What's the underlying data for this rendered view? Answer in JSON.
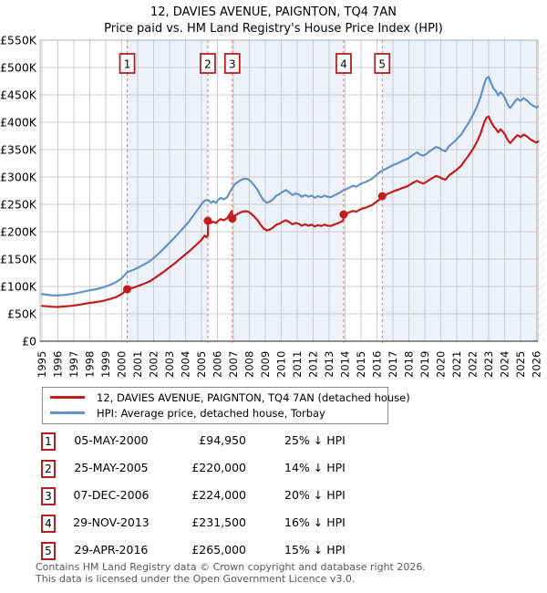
{
  "title": "12, DAVIES AVENUE, PAIGNTON, TQ4 7AN",
  "subtitle": "Price paid vs. HM Land Registry's House Price Index (HPI)",
  "footer": {
    "line1": "Contains HM Land Registry data © Crown copyright and database right 2026.",
    "line2": "This data is licensed under the Open Government Licence v3.0."
  },
  "chart_data": {
    "type": "line",
    "xlabel": "",
    "ylabel": "",
    "x_ticks": [
      1995,
      1996,
      1997,
      1998,
      1999,
      2000,
      2001,
      2002,
      2003,
      2004,
      2005,
      2006,
      2007,
      2008,
      2009,
      2010,
      2011,
      2012,
      2013,
      2014,
      2015,
      2016,
      2017,
      2018,
      2019,
      2020,
      2021,
      2022,
      2023,
      2024,
      2025,
      2026
    ],
    "y_ticks_k": [
      0,
      50,
      100,
      150,
      200,
      250,
      300,
      350,
      400,
      450,
      500,
      550
    ],
    "ylim_k": [
      0,
      550
    ],
    "grid": true,
    "colors": {
      "grid": "#cccccc",
      "band": "#edf1f9",
      "dashed": "#e57373",
      "badge_border": "#b42020",
      "border": "#b3b3b3",
      "axis": "#4d4d4d",
      "hatch": "#c9cdd4"
    },
    "series": [
      {
        "name": "12, DAVIES AVENUE, PAIGNTON, TQ4 7AN (detached house)",
        "color": "#c01d1d",
        "points_year_priceK": [
          [
            1995.0,
            64.5
          ],
          [
            1995.3,
            63.8
          ],
          [
            1995.6,
            63
          ],
          [
            1996.0,
            62.5
          ],
          [
            1996.4,
            63.5
          ],
          [
            1996.8,
            64.5
          ],
          [
            1997.2,
            66
          ],
          [
            1997.6,
            68
          ],
          [
            1998.0,
            70
          ],
          [
            1998.4,
            71.5
          ],
          [
            1998.8,
            73.5
          ],
          [
            1999.2,
            76.5
          ],
          [
            1999.6,
            80
          ],
          [
            2000.0,
            86
          ],
          [
            2000.35,
            95
          ],
          [
            2000.7,
            97.5
          ],
          [
            2001.0,
            100.5
          ],
          [
            2001.4,
            105
          ],
          [
            2001.8,
            110
          ],
          [
            2002.2,
            118
          ],
          [
            2002.6,
            126
          ],
          [
            2003.0,
            135
          ],
          [
            2003.4,
            144
          ],
          [
            2003.8,
            154
          ],
          [
            2004.2,
            163.5
          ],
          [
            2004.6,
            174
          ],
          [
            2005.0,
            185
          ],
          [
            2005.2,
            193
          ],
          [
            2005.3,
            190
          ],
          [
            2005.4,
            193
          ],
          [
            2005.42,
            220
          ],
          [
            2005.6,
            216
          ],
          [
            2005.75,
            218.5
          ],
          [
            2005.9,
            216
          ],
          [
            2006.05,
            220
          ],
          [
            2006.2,
            223
          ],
          [
            2006.4,
            221
          ],
          [
            2006.6,
            224.5
          ],
          [
            2006.9,
            238
          ],
          [
            2006.94,
            224
          ],
          [
            2007.1,
            229.5
          ],
          [
            2007.3,
            233
          ],
          [
            2007.5,
            236
          ],
          [
            2007.7,
            237.5
          ],
          [
            2007.9,
            237
          ],
          [
            2008.1,
            233.5
          ],
          [
            2008.3,
            228
          ],
          [
            2008.5,
            221.5
          ],
          [
            2008.7,
            213
          ],
          [
            2008.9,
            205.5
          ],
          [
            2009.1,
            202.5
          ],
          [
            2009.3,
            204
          ],
          [
            2009.5,
            208
          ],
          [
            2009.7,
            213
          ],
          [
            2009.9,
            215
          ],
          [
            2010.1,
            218.5
          ],
          [
            2010.3,
            221
          ],
          [
            2010.5,
            217.5
          ],
          [
            2010.7,
            213.5
          ],
          [
            2010.9,
            216
          ],
          [
            2011.1,
            214.5
          ],
          [
            2011.3,
            211
          ],
          [
            2011.5,
            213.5
          ],
          [
            2011.7,
            211
          ],
          [
            2011.9,
            213
          ],
          [
            2012.1,
            209.5
          ],
          [
            2012.3,
            212
          ],
          [
            2012.5,
            210.5
          ],
          [
            2012.7,
            213
          ],
          [
            2012.9,
            211
          ],
          [
            2013.1,
            210.5
          ],
          [
            2013.3,
            213
          ],
          [
            2013.5,
            215
          ],
          [
            2013.7,
            217.5
          ],
          [
            2013.89,
            221
          ],
          [
            2013.91,
            231.5
          ],
          [
            2014.1,
            233
          ],
          [
            2014.3,
            236
          ],
          [
            2014.5,
            238
          ],
          [
            2014.7,
            236.5
          ],
          [
            2014.9,
            240
          ],
          [
            2015.1,
            242.5
          ],
          [
            2015.3,
            244
          ],
          [
            2015.5,
            246.5
          ],
          [
            2015.7,
            249
          ],
          [
            2015.9,
            253.5
          ],
          [
            2016.1,
            257.5
          ],
          [
            2016.31,
            262
          ],
          [
            2016.33,
            265
          ],
          [
            2016.5,
            267
          ],
          [
            2016.7,
            269.5
          ],
          [
            2016.9,
            272
          ],
          [
            2017.1,
            274.5
          ],
          [
            2017.3,
            276.5
          ],
          [
            2017.5,
            279
          ],
          [
            2017.7,
            281
          ],
          [
            2017.9,
            283
          ],
          [
            2018.1,
            286.5
          ],
          [
            2018.3,
            290
          ],
          [
            2018.5,
            293
          ],
          [
            2018.7,
            290
          ],
          [
            2018.9,
            288
          ],
          [
            2019.1,
            291
          ],
          [
            2019.3,
            295
          ],
          [
            2019.5,
            298.5
          ],
          [
            2019.7,
            302
          ],
          [
            2019.9,
            300
          ],
          [
            2020.1,
            297
          ],
          [
            2020.3,
            295
          ],
          [
            2020.5,
            302.5
          ],
          [
            2020.7,
            307
          ],
          [
            2020.9,
            311
          ],
          [
            2021.1,
            316
          ],
          [
            2021.3,
            321
          ],
          [
            2021.5,
            330
          ],
          [
            2021.7,
            337.5
          ],
          [
            2021.9,
            346
          ],
          [
            2022.1,
            355
          ],
          [
            2022.3,
            366
          ],
          [
            2022.5,
            380
          ],
          [
            2022.7,
            398
          ],
          [
            2022.85,
            408
          ],
          [
            2023.0,
            410.5
          ],
          [
            2023.15,
            401
          ],
          [
            2023.3,
            393
          ],
          [
            2023.45,
            388
          ],
          [
            2023.6,
            381.5
          ],
          [
            2023.75,
            387
          ],
          [
            2023.9,
            382.5
          ],
          [
            2024.05,
            376
          ],
          [
            2024.2,
            367
          ],
          [
            2024.35,
            362
          ],
          [
            2024.5,
            367
          ],
          [
            2024.65,
            372
          ],
          [
            2024.8,
            376.5
          ],
          [
            2025.0,
            373
          ],
          [
            2025.2,
            377.5
          ],
          [
            2025.4,
            374
          ],
          [
            2025.6,
            369
          ],
          [
            2025.8,
            365.5
          ],
          [
            2026.0,
            363
          ],
          [
            2026.1,
            365
          ]
        ]
      },
      {
        "name": "HPI: Average price, detached house, Torbay",
        "color": "#6593c9",
        "points_year_priceK": [
          [
            1995.0,
            86
          ],
          [
            1995.3,
            85
          ],
          [
            1995.6,
            84
          ],
          [
            1996.0,
            83.5
          ],
          [
            1996.4,
            84.5
          ],
          [
            1996.8,
            86
          ],
          [
            1997.2,
            88
          ],
          [
            1997.6,
            90.5
          ],
          [
            1998.0,
            93
          ],
          [
            1998.4,
            95
          ],
          [
            1998.8,
            98
          ],
          [
            1999.2,
            102
          ],
          [
            1999.6,
            107
          ],
          [
            2000.0,
            115
          ],
          [
            2000.35,
            126
          ],
          [
            2000.7,
            130
          ],
          [
            2001.0,
            134
          ],
          [
            2001.4,
            140
          ],
          [
            2001.8,
            147
          ],
          [
            2002.2,
            157
          ],
          [
            2002.6,
            168
          ],
          [
            2003.0,
            180
          ],
          [
            2003.4,
            192
          ],
          [
            2003.8,
            205
          ],
          [
            2004.2,
            218
          ],
          [
            2004.6,
            234
          ],
          [
            2005.0,
            250
          ],
          [
            2005.2,
            257
          ],
          [
            2005.42,
            258
          ],
          [
            2005.6,
            253
          ],
          [
            2005.75,
            256
          ],
          [
            2005.9,
            253
          ],
          [
            2006.05,
            258
          ],
          [
            2006.2,
            262
          ],
          [
            2006.4,
            259
          ],
          [
            2006.6,
            263
          ],
          [
            2006.93,
            280
          ],
          [
            2007.1,
            287
          ],
          [
            2007.3,
            291
          ],
          [
            2007.5,
            295
          ],
          [
            2007.7,
            297
          ],
          [
            2007.9,
            296
          ],
          [
            2008.1,
            292
          ],
          [
            2008.3,
            285
          ],
          [
            2008.5,
            277
          ],
          [
            2008.7,
            266
          ],
          [
            2008.9,
            257
          ],
          [
            2009.1,
            253
          ],
          [
            2009.3,
            255
          ],
          [
            2009.5,
            260
          ],
          [
            2009.7,
            266
          ],
          [
            2009.9,
            269
          ],
          [
            2010.1,
            273
          ],
          [
            2010.3,
            276
          ],
          [
            2010.5,
            272
          ],
          [
            2010.7,
            267
          ],
          [
            2010.9,
            270
          ],
          [
            2011.1,
            268
          ],
          [
            2011.3,
            264
          ],
          [
            2011.5,
            267
          ],
          [
            2011.7,
            264
          ],
          [
            2011.9,
            266
          ],
          [
            2012.1,
            262
          ],
          [
            2012.3,
            265
          ],
          [
            2012.5,
            263
          ],
          [
            2012.7,
            266
          ],
          [
            2012.9,
            264
          ],
          [
            2013.1,
            263
          ],
          [
            2013.3,
            266
          ],
          [
            2013.5,
            269
          ],
          [
            2013.7,
            272
          ],
          [
            2013.91,
            276
          ],
          [
            2014.1,
            278
          ],
          [
            2014.3,
            281
          ],
          [
            2014.5,
            284
          ],
          [
            2014.7,
            282
          ],
          [
            2014.9,
            286
          ],
          [
            2015.1,
            289
          ],
          [
            2015.3,
            291
          ],
          [
            2015.5,
            294
          ],
          [
            2015.7,
            297
          ],
          [
            2015.9,
            302
          ],
          [
            2016.1,
            307
          ],
          [
            2016.33,
            312
          ],
          [
            2016.5,
            314
          ],
          [
            2016.7,
            317
          ],
          [
            2016.9,
            320
          ],
          [
            2017.1,
            323
          ],
          [
            2017.3,
            325
          ],
          [
            2017.5,
            328
          ],
          [
            2017.7,
            331
          ],
          [
            2017.9,
            333
          ],
          [
            2018.1,
            337
          ],
          [
            2018.3,
            341
          ],
          [
            2018.5,
            345
          ],
          [
            2018.7,
            341
          ],
          [
            2018.9,
            339
          ],
          [
            2019.1,
            342
          ],
          [
            2019.3,
            347
          ],
          [
            2019.5,
            351
          ],
          [
            2019.7,
            355
          ],
          [
            2019.9,
            353
          ],
          [
            2020.1,
            349
          ],
          [
            2020.3,
            347
          ],
          [
            2020.5,
            356
          ],
          [
            2020.7,
            361
          ],
          [
            2020.9,
            366
          ],
          [
            2021.1,
            372
          ],
          [
            2021.3,
            378
          ],
          [
            2021.5,
            388
          ],
          [
            2021.7,
            397
          ],
          [
            2021.9,
            407
          ],
          [
            2022.1,
            418
          ],
          [
            2022.3,
            431
          ],
          [
            2022.5,
            447
          ],
          [
            2022.7,
            468
          ],
          [
            2022.85,
            480
          ],
          [
            2023.0,
            483
          ],
          [
            2023.15,
            472
          ],
          [
            2023.3,
            462
          ],
          [
            2023.45,
            457
          ],
          [
            2023.6,
            449
          ],
          [
            2023.75,
            455
          ],
          [
            2023.9,
            450
          ],
          [
            2024.05,
            442
          ],
          [
            2024.2,
            432
          ],
          [
            2024.35,
            426
          ],
          [
            2024.5,
            432
          ],
          [
            2024.65,
            438
          ],
          [
            2024.8,
            443
          ],
          [
            2025.0,
            439
          ],
          [
            2025.2,
            444
          ],
          [
            2025.4,
            440
          ],
          [
            2025.6,
            434
          ],
          [
            2025.8,
            430
          ],
          [
            2026.0,
            427
          ],
          [
            2026.1,
            429
          ]
        ]
      }
    ],
    "sales": [
      {
        "label": "1",
        "date": "05-MAY-2000",
        "year": 2000.345,
        "price": "£94,950",
        "price_k": 94.95,
        "hpi": "25% ↓ HPI"
      },
      {
        "label": "2",
        "date": "25-MAY-2005",
        "year": 2005.397,
        "price": "£220,000",
        "price_k": 220,
        "hpi": "14% ↓ HPI"
      },
      {
        "label": "3",
        "date": "07-DEC-2006",
        "year": 2006.932,
        "price": "£224,000",
        "price_k": 224,
        "hpi": "20% ↓ HPI"
      },
      {
        "label": "4",
        "date": "29-NOV-2013",
        "year": 2013.912,
        "price": "£231,500",
        "price_k": 231.5,
        "hpi": "16% ↓ HPI"
      },
      {
        "label": "5",
        "date": "29-APR-2016",
        "year": 2016.329,
        "price": "£265,000",
        "price_k": 265,
        "hpi": "15% ↓ HPI"
      }
    ]
  }
}
